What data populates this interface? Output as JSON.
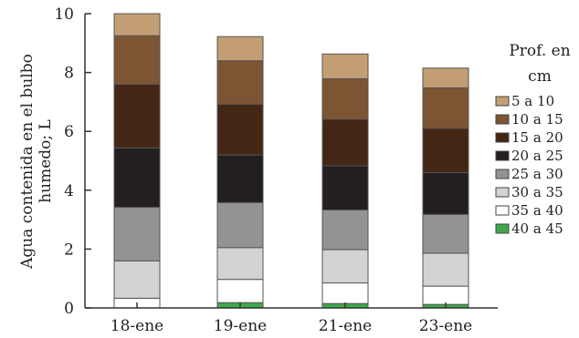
{
  "chart_data": {
    "type": "bar",
    "stacked": true,
    "categories": [
      "18-ene",
      "19-ene",
      "21-ene",
      "23-ene"
    ],
    "ylabel": "Agua contenida en el bulbo humedo; L",
    "ylim": [
      0,
      10
    ],
    "yticks": [
      "0",
      "2",
      "4",
      "6",
      "8",
      "10"
    ],
    "grid": false,
    "legend": {
      "title": "Prof. en cm",
      "placement": "right"
    },
    "series": [
      {
        "name": "40 a 45",
        "color": "#3daa4a",
        "values": [
          0.0,
          0.18,
          0.15,
          0.12
        ]
      },
      {
        "name": "35 a 40",
        "color": "#ffffff",
        "values": [
          0.33,
          0.79,
          0.7,
          0.62
        ]
      },
      {
        "name": "30 a 35",
        "color": "#d3d3d3",
        "values": [
          1.27,
          1.08,
          1.13,
          1.12
        ]
      },
      {
        "name": "25 a 30",
        "color": "#939393",
        "values": [
          1.82,
          1.53,
          1.35,
          1.32
        ]
      },
      {
        "name": "20 a 25",
        "color": "#231f20",
        "values": [
          2.02,
          1.62,
          1.5,
          1.42
        ]
      },
      {
        "name": "15 a 20",
        "color": "#442615",
        "values": [
          2.16,
          1.72,
          1.58,
          1.5
        ]
      },
      {
        "name": "10 a 15",
        "color": "#7d5533",
        "values": [
          1.65,
          1.48,
          1.38,
          1.38
        ]
      },
      {
        "name": "5 a 10",
        "color": "#c39e74",
        "values": [
          0.75,
          0.82,
          0.84,
          0.67
        ]
      }
    ]
  }
}
